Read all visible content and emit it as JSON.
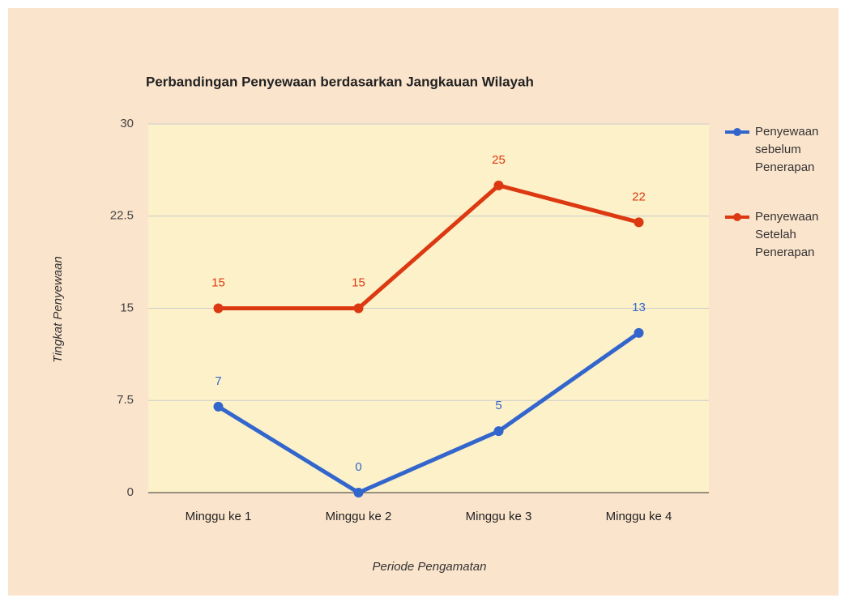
{
  "chart_data": {
    "type": "line",
    "title": "Perbandingan Penyewaan berdasarkan Jangkauan Wilayah",
    "x_label": "Periode Pengamatan",
    "y_label": "Tingkat Penyewaan",
    "categories": [
      "Minggu ke 1",
      "Minggu ke 2",
      "Minggu ke 3",
      "Minggu ke 4"
    ],
    "series": [
      {
        "name": "Penyewaan sebelum Penerapan",
        "color": "#3366cc",
        "values": [
          7,
          0,
          5,
          13
        ]
      },
      {
        "name": "Penyewaan Setelah Penerapan",
        "color": "#dc3912",
        "values": [
          15,
          15,
          25,
          22
        ]
      }
    ],
    "ylim": [
      0,
      30
    ],
    "yticks": [
      0,
      7.5,
      15,
      22.5,
      30
    ],
    "grid": true,
    "legend": "right"
  }
}
